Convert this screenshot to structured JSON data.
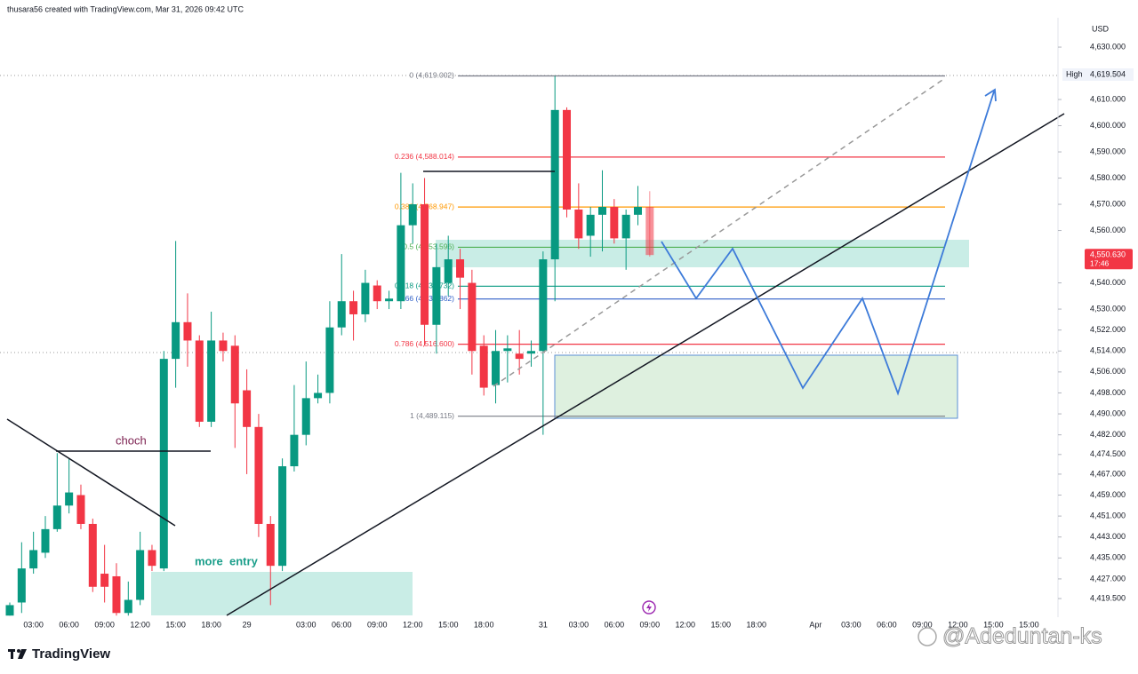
{
  "header": "thusara56 created with TradingView.com, Mar 31, 2026 09:42 UTC",
  "brand": "TradingView",
  "watermark": "@Adeduntan-ks",
  "chart_data": {
    "type": "candlestick",
    "currency": "USD",
    "up_color": "#089981",
    "down_color": "#f23645",
    "categories": [
      null,
      null,
      "03:00",
      null,
      null,
      "06:00",
      null,
      null,
      "09:00",
      null,
      null,
      "12:00",
      null,
      null,
      "15:00",
      null,
      null,
      "18:00",
      null,
      null,
      "29",
      null,
      null,
      null,
      null,
      "03:00",
      null,
      null,
      "06:00",
      null,
      null,
      "09:00",
      null,
      null,
      "12:00",
      null,
      null,
      "15:00",
      null,
      null,
      "18:00",
      null,
      null,
      null,
      null,
      "31",
      null,
      null,
      "03:00",
      null,
      null,
      "06:00",
      null,
      null,
      "09:00",
      null,
      null,
      "12:00",
      null,
      null,
      "15:00",
      null,
      null,
      "18:00",
      null,
      null,
      null,
      null,
      "Apr",
      null,
      null,
      "03:00",
      null,
      null,
      "06:00",
      null,
      null,
      "09:00",
      null,
      null,
      "12:00",
      null,
      null,
      "15:00",
      null,
      null,
      "15:00"
    ],
    "open": [
      4413,
      4418,
      4431,
      4437,
      4446,
      4455,
      4459,
      4448,
      4429,
      4428,
      4414,
      4419,
      4438,
      4431,
      4511,
      4525,
      4518,
      4487,
      4518,
      4516,
      4499,
      4485,
      4448,
      4432,
      4470,
      4482,
      4496,
      4498,
      4523,
      4533,
      4528,
      4539,
      4533,
      4533,
      4562,
      4570,
      4524,
      4540,
      4549,
      4540,
      4516,
      4501,
      4514,
      4513,
      4513,
      4514,
      4549,
      4606,
      4568,
      4558,
      4566,
      4569,
      4557,
      4566,
      4569,
      null,
      null,
      null,
      null,
      null,
      null,
      null,
      null,
      null,
      null,
      null,
      null,
      null,
      null,
      null,
      null,
      null,
      null,
      null,
      null,
      null,
      null,
      null,
      null,
      null,
      null,
      null,
      null,
      null,
      null,
      null,
      null
    ],
    "high": [
      4418,
      4441,
      4445,
      4451,
      4475,
      4473,
      4463,
      4450,
      4440,
      4433,
      4426,
      4445,
      4440,
      4514,
      4556,
      4536,
      4520,
      4529,
      4521,
      4520,
      4507,
      4490,
      4451,
      4473,
      4501,
      4510,
      4505,
      4533,
      4551,
      4537,
      4545,
      4541,
      4537,
      4582,
      4578,
      4580,
      4555,
      4558,
      4553,
      4545,
      4520,
      4522,
      4520,
      4522,
      4518,
      4552,
      4619,
      4607,
      4578,
      4569,
      4583,
      4572,
      4568,
      4577,
      4575,
      null,
      null,
      null,
      null,
      null,
      null,
      null,
      null,
      null,
      null,
      null,
      null,
      null,
      null,
      null,
      null,
      null,
      null,
      null,
      null,
      null,
      null,
      null,
      null,
      null,
      null,
      null,
      null,
      null,
      null,
      null,
      null
    ],
    "low": [
      4413,
      4414,
      4429,
      4435,
      4445,
      4452,
      4446,
      4422,
      4418,
      4413,
      4413,
      4417,
      4430,
      4430,
      4500,
      4508,
      4485,
      4485,
      4510,
      4477,
      4467,
      4443,
      4417,
      4430,
      4468,
      4478,
      4494,
      4494,
      4520,
      4518,
      4525,
      4530,
      4530,
      4530,
      4555,
      4516,
      4513,
      4535,
      4530,
      4505,
      4497,
      4494,
      4502,
      4505,
      4508,
      4482,
      4533,
      4565,
      4553,
      4550,
      4552,
      4555,
      4545,
      4562,
      4550,
      null,
      null,
      null,
      null,
      null,
      null,
      null,
      null,
      null,
      null,
      null,
      null,
      null,
      null,
      null,
      null,
      null,
      null,
      null,
      null,
      null,
      null,
      null,
      null,
      null,
      null,
      null,
      null,
      null,
      null,
      null,
      null
    ],
    "close": [
      4417,
      4431,
      4438,
      4446,
      4455,
      4460,
      4448,
      4424,
      4424,
      4414,
      4419,
      4438,
      4432,
      4511,
      4525,
      4518,
      4487,
      4518,
      4514,
      4494,
      4485,
      4448,
      4432,
      4470,
      4482,
      4496,
      4498,
      4523,
      4533,
      4528,
      4540,
      4533,
      4534,
      4562,
      4570,
      4524,
      4546,
      4549,
      4542,
      4514,
      4500,
      4514,
      4515,
      4511,
      4514,
      4549,
      4606,
      4568,
      4557,
      4566,
      4569,
      4557,
      4566,
      4569,
      4550.63,
      null,
      null,
      null,
      null,
      null,
      null,
      null,
      null,
      null,
      null,
      null,
      null,
      null,
      null,
      null,
      null,
      null,
      null,
      null,
      null,
      null,
      null,
      null,
      null,
      null,
      null,
      null,
      null,
      null,
      null,
      null,
      null
    ],
    "ylim": [
      4412.4,
      4641.2
    ],
    "yticks": [
      {
        "value": 4630,
        "label": "4,630.000"
      },
      {
        "value": 4610,
        "label": "4,610.000"
      },
      {
        "value": 4600,
        "label": "4,600.000"
      },
      {
        "value": 4590,
        "label": "4,590.000"
      },
      {
        "value": 4580,
        "label": "4,580.000"
      },
      {
        "value": 4570,
        "label": "4,570.000"
      },
      {
        "value": 4560,
        "label": "4,560.000"
      },
      {
        "value": 4540,
        "label": "4,540.000"
      },
      {
        "value": 4530,
        "label": "4,530.000"
      },
      {
        "value": 4522,
        "label": "4,522.000"
      },
      {
        "value": 4514,
        "label": "4,514.000"
      },
      {
        "value": 4506,
        "label": "4,506.000"
      },
      {
        "value": 4498,
        "label": "4,498.000"
      },
      {
        "value": 4490,
        "label": "4,490.000"
      },
      {
        "value": 4482,
        "label": "4,482.000"
      },
      {
        "value": 4474.5,
        "label": "4,474.500"
      },
      {
        "value": 4467,
        "label": "4,467.000"
      },
      {
        "value": 4459,
        "label": "4,459.000"
      },
      {
        "value": 4451,
        "label": "4,451.000"
      },
      {
        "value": 4443,
        "label": "4,443.000"
      },
      {
        "value": 4435,
        "label": "4,435.000"
      },
      {
        "value": 4427,
        "label": "4,427.000"
      },
      {
        "value": 4419.5,
        "label": "4,419.500"
      }
    ],
    "fib_levels": [
      {
        "label": "0 (4,619.002)",
        "price": 4619.002,
        "color": "#787b86"
      },
      {
        "label": "0.236 (4,588.014)",
        "price": 4588.014,
        "color": "#f23645"
      },
      {
        "label": "0.382 (4,568.947)",
        "price": 4568.947,
        "color": "#ff9800"
      },
      {
        "label": "0.5 (4,553.596)",
        "price": 4553.596,
        "color": "#4caf50"
      },
      {
        "label": "0.618 (4,538.732)",
        "price": 4538.732,
        "color": "#089981"
      },
      {
        "label": "0.66 (4,533.862)",
        "price": 4533.862,
        "color": "#2f5fc8"
      },
      {
        "label": "0.786 (4,516.600)",
        "price": 4516.6,
        "color": "#f23645"
      },
      {
        "label": "1 (4,489.115)",
        "price": 4489.115,
        "color": "#787b86"
      }
    ],
    "high_marker": {
      "name": "High",
      "value": 4619.504,
      "value_label": "4,619.504"
    },
    "last_price": {
      "value": 4550.63,
      "value_label": "4,550.630",
      "countdown": "17:46",
      "color": "#f23645"
    },
    "annotations": [
      "choch",
      "more  entry"
    ]
  }
}
